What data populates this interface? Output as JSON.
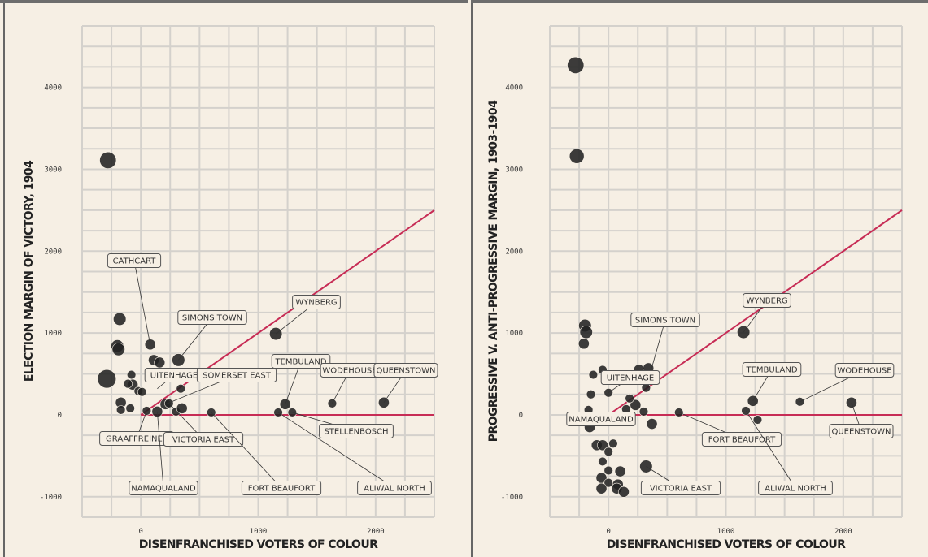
{
  "chart_data": [
    {
      "type": "scatter",
      "xlabel": "DISENFRANCHISED VOTERS OF COLOUR",
      "ylabel": "ELECTION MARGIN OF VICTORY, 1904",
      "x_ticks": [
        "0",
        "1000",
        "2000"
      ],
      "y_ticks": [
        "-1000",
        "0",
        "1000",
        "2000",
        "3000",
        "4000"
      ],
      "xlim": [
        -500,
        2500
      ],
      "ylim": [
        -1250,
        4750
      ],
      "reference_lines": [
        {
          "kind": "horizontal",
          "y": 0,
          "x_range": [
            0,
            2500
          ],
          "color": "#c72c55"
        },
        {
          "kind": "diagonal",
          "from": [
            0,
            0
          ],
          "to": [
            2500,
            2500
          ],
          "color": "#c72c55"
        }
      ],
      "points": [
        {
          "x": -280,
          "y": 3110,
          "size": 3
        },
        {
          "x": -180,
          "y": 1170,
          "size": 2
        },
        {
          "x": -200,
          "y": 840,
          "size": 2
        },
        {
          "x": -190,
          "y": 800,
          "size": 2
        },
        {
          "x": -290,
          "y": 440,
          "size": 3.5
        },
        {
          "x": -80,
          "y": 490,
          "size": 1
        },
        {
          "x": -70,
          "y": 370,
          "size": 1.5
        },
        {
          "x": -110,
          "y": 380,
          "size": 1
        },
        {
          "x": -20,
          "y": 290,
          "size": 1
        },
        {
          "x": 10,
          "y": 280,
          "size": 1
        },
        {
          "x": -170,
          "y": 150,
          "size": 1.5
        },
        {
          "x": -170,
          "y": 60,
          "size": 1
        },
        {
          "x": -90,
          "y": 80,
          "size": 1
        },
        {
          "x": 50,
          "y": 50,
          "size": 1
        },
        {
          "x": 80,
          "y": 860,
          "size": 1.5
        },
        {
          "x": 110,
          "y": 670,
          "size": 1.5
        },
        {
          "x": 160,
          "y": 640,
          "size": 1.5
        },
        {
          "x": 320,
          "y": 670,
          "size": 2
        },
        {
          "x": 140,
          "y": 40,
          "size": 1.5
        },
        {
          "x": 210,
          "y": 130,
          "size": 1.5
        },
        {
          "x": 240,
          "y": 140,
          "size": 1
        },
        {
          "x": 300,
          "y": 40,
          "size": 1
        },
        {
          "x": 350,
          "y": 80,
          "size": 1.5
        },
        {
          "x": 340,
          "y": 320,
          "size": 1
        },
        {
          "x": 600,
          "y": 30,
          "size": 1
        },
        {
          "x": 1150,
          "y": 990,
          "size": 2
        },
        {
          "x": 1230,
          "y": 130,
          "size": 1.5
        },
        {
          "x": 1170,
          "y": 30,
          "size": 1
        },
        {
          "x": 1290,
          "y": 30,
          "size": 1
        },
        {
          "x": 1630,
          "y": 140,
          "size": 1
        },
        {
          "x": 2070,
          "y": 150,
          "size": 1.5
        }
      ],
      "annotations": [
        "CATHCART",
        "SIMONS TOWN",
        "WYNBERG",
        "TEMBULAND",
        "UITENHAGE",
        "SOMERSET EAST",
        "WODEHOUSE",
        "QUEENSTOWN",
        "GRAAFFREINET",
        "VICTORIA EAST",
        "STELLENBOSCH",
        "NAMAQUALAND",
        "FORT BEAUFORT",
        "ALIWAL NORTH"
      ]
    },
    {
      "type": "scatter",
      "xlabel": "DISENFRANCHISED VOTERS OF COLOUR",
      "ylabel": "PROGRESSIVE V. ANTI-PROGRESSIVE MARGIN, 1903-1904",
      "x_ticks": [
        "0",
        "1000",
        "2000"
      ],
      "y_ticks": [
        "-1000",
        "0",
        "1000",
        "2000",
        "3000",
        "4000"
      ],
      "xlim": [
        -500,
        2500
      ],
      "ylim": [
        -1250,
        4750
      ],
      "reference_lines": [
        {
          "kind": "horizontal",
          "y": 0,
          "x_range": [
            0,
            2500
          ],
          "color": "#c72c55"
        },
        {
          "kind": "diagonal",
          "from": [
            0,
            0
          ],
          "to": [
            2500,
            2500
          ],
          "color": "#c72c55"
        }
      ],
      "points": [
        {
          "x": -280,
          "y": 4270,
          "size": 3
        },
        {
          "x": -270,
          "y": 3160,
          "size": 2.5
        },
        {
          "x": -200,
          "y": 1090,
          "size": 2
        },
        {
          "x": -190,
          "y": 1010,
          "size": 2
        },
        {
          "x": -210,
          "y": 870,
          "size": 1.5
        },
        {
          "x": -50,
          "y": 550,
          "size": 1
        },
        {
          "x": -130,
          "y": 490,
          "size": 1
        },
        {
          "x": 0,
          "y": 270,
          "size": 1
        },
        {
          "x": -150,
          "y": 250,
          "size": 1
        },
        {
          "x": -170,
          "y": 60,
          "size": 1
        },
        {
          "x": -160,
          "y": -150,
          "size": 1.5
        },
        {
          "x": -100,
          "y": -370,
          "size": 1.5
        },
        {
          "x": -50,
          "y": -370,
          "size": 1.5
        },
        {
          "x": 40,
          "y": -350,
          "size": 1
        },
        {
          "x": 0,
          "y": -450,
          "size": 1
        },
        {
          "x": -50,
          "y": -570,
          "size": 1
        },
        {
          "x": 0,
          "y": -680,
          "size": 1
        },
        {
          "x": 100,
          "y": -690,
          "size": 1.5
        },
        {
          "x": -60,
          "y": -770,
          "size": 1.5
        },
        {
          "x": 0,
          "y": -830,
          "size": 1
        },
        {
          "x": 80,
          "y": -850,
          "size": 1.5
        },
        {
          "x": -60,
          "y": -900,
          "size": 1.5
        },
        {
          "x": 70,
          "y": -900,
          "size": 1.5
        },
        {
          "x": 130,
          "y": -940,
          "size": 1.5
        },
        {
          "x": 260,
          "y": 550,
          "size": 1.5
        },
        {
          "x": 340,
          "y": 570,
          "size": 1.5
        },
        {
          "x": 230,
          "y": 120,
          "size": 1.5
        },
        {
          "x": 180,
          "y": 200,
          "size": 1
        },
        {
          "x": 150,
          "y": 70,
          "size": 1
        },
        {
          "x": 300,
          "y": 40,
          "size": 1
        },
        {
          "x": 320,
          "y": 330,
          "size": 1
        },
        {
          "x": 320,
          "y": -630,
          "size": 2
        },
        {
          "x": 370,
          "y": -110,
          "size": 1.5
        },
        {
          "x": 600,
          "y": 30,
          "size": 1
        },
        {
          "x": 1150,
          "y": 1010,
          "size": 2
        },
        {
          "x": 1230,
          "y": 170,
          "size": 1.5
        },
        {
          "x": 1170,
          "y": 50,
          "size": 1
        },
        {
          "x": 1270,
          "y": -60,
          "size": 1
        },
        {
          "x": 1630,
          "y": 160,
          "size": 1
        },
        {
          "x": 2070,
          "y": 150,
          "size": 1.5
        }
      ],
      "annotations": [
        "SIMONS TOWN",
        "WYNBERG",
        "UITENHAGE",
        "TEMBULAND",
        "WODEHOUSE",
        "NAMAQUALAND",
        "FORT BEAUFORT",
        "QUEENSTOWN",
        "VICTORIA EAST",
        "ALIWAL NORTH"
      ]
    }
  ]
}
